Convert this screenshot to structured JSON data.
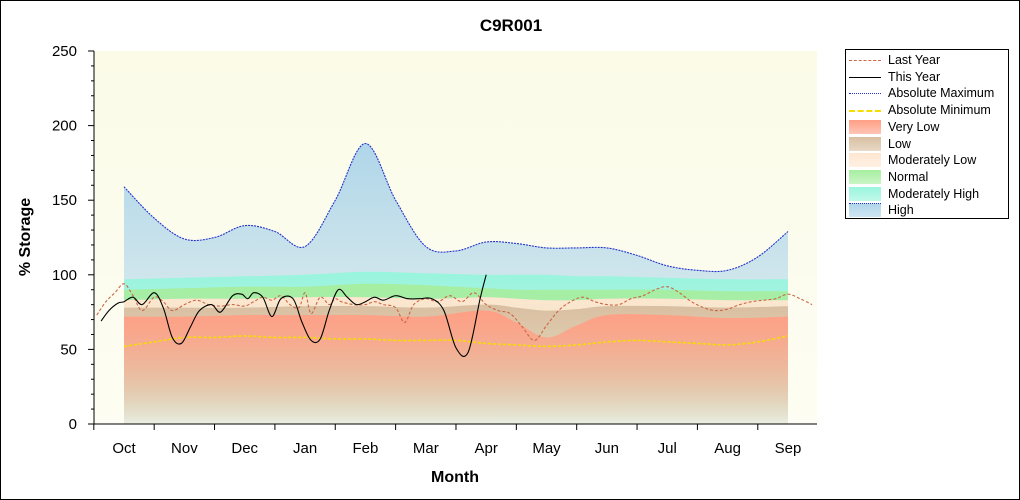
{
  "chart_data": {
    "type": "area",
    "title": "C9R001",
    "xlabel": "Month",
    "ylabel": "% Storage",
    "ylim": [
      0,
      250
    ],
    "yticks": [
      0,
      50,
      100,
      150,
      200,
      250
    ],
    "categories": [
      "Oct",
      "Nov",
      "Dec",
      "Jan",
      "Feb",
      "Mar",
      "Apr",
      "May",
      "Jun",
      "Jul",
      "Aug",
      "Sep"
    ],
    "grid": false,
    "legend_position": "right",
    "series": [
      {
        "name": "Last Year",
        "type": "line",
        "style": "dashed",
        "color": "#cc6644",
        "x": [
          -0.45,
          -0.3,
          -0.15,
          0,
          0.15,
          0.3,
          0.5,
          0.65,
          0.8,
          1.0,
          1.2,
          1.4,
          1.6,
          1.8,
          2.0,
          2.15,
          2.3,
          2.45,
          2.6,
          2.75,
          2.9,
          3.0,
          3.1,
          3.25,
          3.4,
          3.5,
          3.6,
          3.8,
          4.0,
          4.15,
          4.3,
          4.5,
          4.65,
          4.8,
          5.0,
          5.2,
          5.4,
          5.6,
          5.8,
          6.0,
          6.2,
          6.4,
          6.6,
          6.8,
          7.0,
          7.2,
          7.4,
          7.6,
          7.8,
          8.0,
          8.2,
          8.4,
          8.6,
          8.8,
          9.0,
          9.2,
          9.4,
          9.6,
          9.8,
          10.0,
          10.2,
          10.4,
          10.6,
          10.8,
          11.0,
          11.2,
          11.4
        ],
        "values": [
          73,
          82,
          88,
          94,
          86,
          76,
          85,
          82,
          76,
          80,
          83,
          80,
          79,
          80,
          79,
          82,
          85,
          83,
          86,
          80,
          78,
          88,
          74,
          85,
          80,
          84,
          82,
          80,
          80,
          82,
          80,
          78,
          68,
          80,
          84,
          82,
          86,
          82,
          88,
          80,
          76,
          74,
          65,
          56,
          66,
          76,
          82,
          85,
          82,
          80,
          80,
          84,
          86,
          90,
          92,
          88,
          82,
          78,
          76,
          77,
          80,
          82,
          83,
          84,
          87,
          84,
          80
        ]
      },
      {
        "name": "This Year",
        "type": "line",
        "style": "solid",
        "color": "#000000",
        "x": [
          -0.38,
          -0.25,
          -0.1,
          0,
          0.15,
          0.3,
          0.5,
          0.65,
          0.8,
          0.95,
          1.1,
          1.25,
          1.45,
          1.6,
          1.8,
          1.95,
          2.05,
          2.15,
          2.3,
          2.45,
          2.6,
          2.8,
          2.95,
          3.1,
          3.25,
          3.4,
          3.55,
          3.7,
          3.85,
          4.0,
          4.15,
          4.3,
          4.5,
          4.7,
          4.9,
          5.1,
          5.3,
          5.5,
          5.7,
          5.9,
          6.0
        ],
        "values": [
          69,
          76,
          81,
          82,
          85,
          80,
          88,
          78,
          58,
          54,
          65,
          76,
          80,
          75,
          86,
          87,
          84,
          88,
          85,
          72,
          84,
          84,
          68,
          56,
          57,
          76,
          90,
          85,
          80,
          82,
          85,
          83,
          86,
          84,
          84,
          84,
          76,
          51,
          48,
          84,
          100
        ]
      },
      {
        "name": "Absolute Maximum",
        "type": "line",
        "style": "dotted",
        "color": "#2233cc",
        "x": [
          0,
          0.5,
          1.0,
          1.5,
          2.0,
          2.5,
          3.0,
          3.5,
          4.0,
          4.5,
          5.0,
          5.5,
          6.0,
          6.5,
          7.0,
          7.5,
          8.0,
          8.5,
          9.0,
          9.5,
          10.0,
          10.5,
          11.0
        ],
        "values": [
          159,
          138,
          124,
          125,
          133,
          129,
          119,
          150,
          188,
          150,
          119,
          116,
          122,
          121,
          118,
          118,
          118,
          113,
          106,
          103,
          103,
          112,
          129
        ]
      },
      {
        "name": "Absolute Minimum",
        "type": "line",
        "style": "dashed",
        "color": "#f5dd00",
        "x": [
          0,
          0.5,
          1.0,
          1.5,
          2.0,
          2.5,
          3.0,
          3.5,
          4.0,
          4.5,
          5.0,
          5.5,
          6.0,
          6.5,
          7.0,
          7.5,
          8.0,
          8.5,
          9.0,
          9.5,
          10.0,
          10.5,
          11.0
        ],
        "values": [
          52,
          55,
          58,
          58,
          59,
          58,
          58,
          57,
          57,
          56,
          56,
          56,
          54,
          53,
          52,
          53,
          55,
          56,
          55,
          54,
          53,
          55,
          59
        ]
      },
      {
        "name": "Very Low",
        "type": "area",
        "color": "#ff9f85",
        "x": [
          0,
          1,
          2,
          3,
          4,
          5,
          6,
          6.5,
          7,
          7.5,
          8,
          9,
          10,
          11
        ],
        "values": [
          72,
          72,
          73,
          73,
          73,
          72,
          76,
          68,
          58,
          66,
          73,
          73,
          71,
          72
        ]
      },
      {
        "name": "Low",
        "type": "area",
        "color": "#d9bfa2",
        "x": [
          0,
          1,
          2,
          3,
          4,
          5,
          6,
          6.5,
          7,
          7.5,
          8,
          9,
          10,
          11
        ],
        "values": [
          78,
          78,
          78,
          79,
          79,
          78,
          80,
          78,
          76,
          77,
          79,
          79,
          78,
          79
        ]
      },
      {
        "name": "Moderately Low",
        "type": "area",
        "color": "#ffe6d0",
        "x": [
          0,
          1,
          2,
          3,
          4,
          5,
          6,
          6.5,
          7,
          7.5,
          8,
          9,
          10,
          11
        ],
        "values": [
          83,
          84,
          84,
          85,
          85,
          84,
          85,
          84,
          83,
          83,
          84,
          84,
          83,
          83
        ]
      },
      {
        "name": "Normal",
        "type": "area",
        "color": "#a6eea0",
        "x": [
          0,
          1,
          2,
          3,
          4,
          5,
          6,
          6.5,
          7,
          7.5,
          8,
          9,
          10,
          11
        ],
        "values": [
          90,
          91,
          92,
          92,
          94,
          93,
          91,
          90,
          90,
          90,
          90,
          90,
          89,
          89
        ]
      },
      {
        "name": "Moderately High",
        "type": "area",
        "color": "#99f5dd",
        "x": [
          0,
          1,
          2,
          3,
          4,
          5,
          6,
          6.5,
          7,
          7.5,
          8,
          9,
          10,
          11
        ],
        "values": [
          97,
          98,
          99,
          100,
          102,
          101,
          100,
          100,
          100,
          99,
          99,
          98,
          97,
          97
        ]
      },
      {
        "name": "High",
        "type": "area",
        "color": "#b0d6ea",
        "x": [
          0,
          0.5,
          1.0,
          1.5,
          2.0,
          2.5,
          3.0,
          3.5,
          4.0,
          4.5,
          5.0,
          5.5,
          6.0,
          6.5,
          7.0,
          7.5,
          8.0,
          8.5,
          9.0,
          9.5,
          10.0,
          10.5,
          11.0
        ],
        "values": [
          159,
          138,
          124,
          125,
          133,
          129,
          119,
          150,
          188,
          150,
          119,
          116,
          122,
          121,
          118,
          118,
          118,
          113,
          106,
          103,
          103,
          112,
          129
        ]
      }
    ]
  },
  "colors": {
    "plot_background": "#fbfce5",
    "axis": "#000000"
  }
}
